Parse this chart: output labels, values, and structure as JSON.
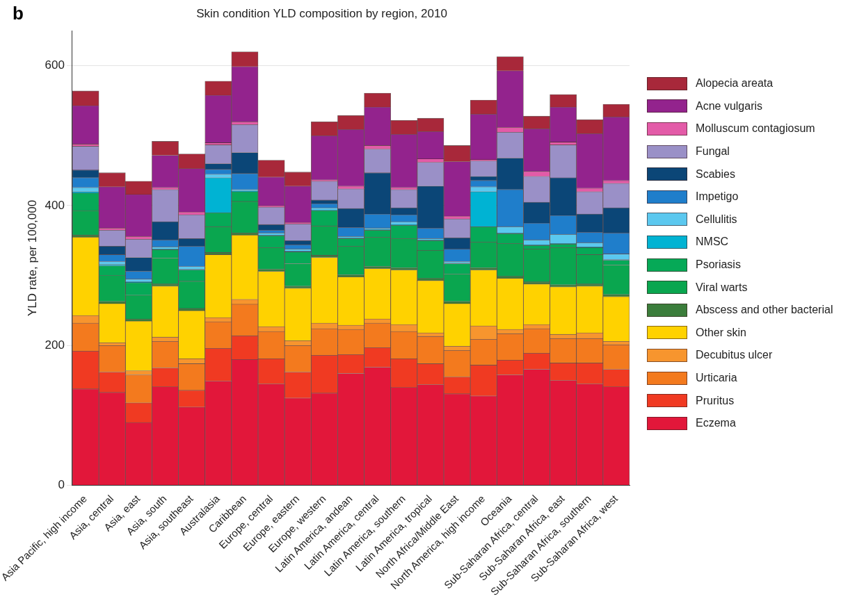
{
  "chart_data": {
    "type": "bar",
    "stacked": true,
    "title": "Skin condition YLD composition by region, 2010",
    "ylabel": "YLD rate, per 100,000",
    "annotations": [
      "b"
    ],
    "categories": [
      "Asia Pacific, high income",
      "Asia, central",
      "Asia, east",
      "Asia, south",
      "Asia, southeast",
      "Australasia",
      "Caribbean",
      "Europe, central",
      "Europe, eastern",
      "Europe, western",
      "Latin America, andean",
      "Latin America, central",
      "Latin America, southern",
      "Latin America, tropical",
      "North Africa/Middle East",
      "North America, high income",
      "Oceania",
      "Sub-Saharan Africa, central",
      "Sub-Saharan Africa, east",
      "Sub-Saharan Africa, southern",
      "Sub-Saharan Africa, west"
    ],
    "ylim": [
      0,
      650
    ],
    "yticks": [
      0,
      200,
      400,
      600
    ],
    "grid": "y",
    "legend": "right",
    "series": [
      {
        "name": "Eczema",
        "color": "#e2173a",
        "values": [
          138,
          133,
          90,
          141,
          112,
          149,
          180,
          145,
          125,
          132,
          160,
          169,
          140,
          144,
          131,
          128,
          158,
          166,
          150,
          145,
          141
        ]
      },
      {
        "name": "Pruritus",
        "color": "#f03a22",
        "values": [
          54,
          29,
          28,
          27,
          24,
          47,
          34,
          36,
          37,
          54,
          27,
          28,
          41,
          30,
          24,
          44,
          21,
          23,
          25,
          30,
          25
        ]
      },
      {
        "name": "Urticaria",
        "color": "#f37a1e",
        "values": [
          40,
          38,
          40,
          38,
          38,
          38,
          45,
          39,
          38,
          38,
          36,
          35,
          39,
          39,
          38,
          37,
          38,
          35,
          35,
          35,
          35
        ]
      },
      {
        "name": "Decubitus ulcer",
        "color": "#f7952e",
        "values": [
          11,
          4,
          6,
          6,
          7,
          6,
          7,
          7,
          7,
          8,
          6,
          6,
          10,
          5,
          6,
          19,
          6,
          6,
          6,
          8,
          5
        ]
      },
      {
        "name": "Other skin",
        "color": "#ffd200",
        "values": [
          112,
          56,
          71,
          73,
          69,
          90,
          92,
          79,
          75,
          94,
          69,
          72,
          78,
          75,
          61,
          80,
          73,
          58,
          68,
          67,
          64
        ]
      },
      {
        "name": "Abscess and other bacterial",
        "color": "#3b7d3b",
        "values": [
          3,
          3,
          3,
          3,
          3,
          3,
          3,
          3,
          3,
          3,
          3,
          3,
          3,
          3,
          3,
          3,
          3,
          3,
          3,
          3,
          3
        ]
      },
      {
        "name": "Viral warts",
        "color": "#0aa64f",
        "values": [
          35,
          37,
          34,
          37,
          39,
          37,
          45,
          31,
          32,
          42,
          41,
          42,
          42,
          40,
          39,
          37,
          47,
          47,
          53,
          42,
          42
        ]
      },
      {
        "name": "Psoriasis",
        "color": "#06a957",
        "values": [
          25,
          14,
          18,
          12,
          16,
          20,
          14,
          17,
          17,
          22,
          11,
          10,
          19,
          14,
          15,
          22,
          14,
          5,
          5,
          10,
          7
        ]
      },
      {
        "name": "NMSC",
        "color": "#00b3d3",
        "values": [
          2,
          2,
          1,
          1,
          1,
          50,
          1,
          1,
          1,
          1,
          1,
          1,
          1,
          1,
          1,
          50,
          1,
          1,
          1,
          1,
          1
        ]
      },
      {
        "name": "Cellulitis",
        "color": "#5bc8ef",
        "values": [
          6,
          4,
          4,
          3,
          4,
          5,
          2,
          3,
          3,
          3,
          2,
          2,
          4,
          2,
          2,
          7,
          9,
          7,
          13,
          6,
          8
        ]
      },
      {
        "name": "Impetigo",
        "color": "#1f7ecb",
        "values": [
          14,
          10,
          11,
          10,
          29,
          7,
          23,
          4,
          6,
          6,
          13,
          20,
          10,
          15,
          18,
          9,
          53,
          24,
          27,
          15,
          30
        ]
      },
      {
        "name": "Scabies",
        "color": "#0b4677",
        "values": [
          11,
          12,
          20,
          26,
          11,
          8,
          30,
          8,
          6,
          5,
          27,
          59,
          10,
          60,
          16,
          6,
          45,
          30,
          54,
          26,
          36
        ]
      },
      {
        "name": "Fungal",
        "color": "#9a90c7",
        "values": [
          34,
          23,
          26,
          46,
          34,
          27,
          40,
          25,
          24,
          27,
          28,
          34,
          26,
          34,
          27,
          22,
          37,
          37,
          47,
          32,
          35
        ]
      },
      {
        "name": "Molluscum contagiosum",
        "color": "#e35ba8",
        "values": [
          3,
          3,
          4,
          3,
          4,
          3,
          4,
          2,
          2,
          2,
          4,
          5,
          3,
          5,
          4,
          2,
          7,
          7,
          4,
          5,
          4
        ]
      },
      {
        "name": "Acne vulgaris",
        "color": "#93238d",
        "values": [
          55,
          59,
          60,
          46,
          62,
          68,
          79,
          41,
          52,
          63,
          81,
          55,
          76,
          39,
          78,
          65,
          81,
          61,
          50,
          78,
          91
        ]
      },
      {
        "name": "Alopecia areata",
        "color": "#a8283a",
        "values": [
          21,
          20,
          19,
          20,
          21,
          20,
          21,
          24,
          20,
          20,
          20,
          20,
          20,
          19,
          23,
          20,
          20,
          18,
          18,
          20,
          18
        ]
      }
    ]
  }
}
